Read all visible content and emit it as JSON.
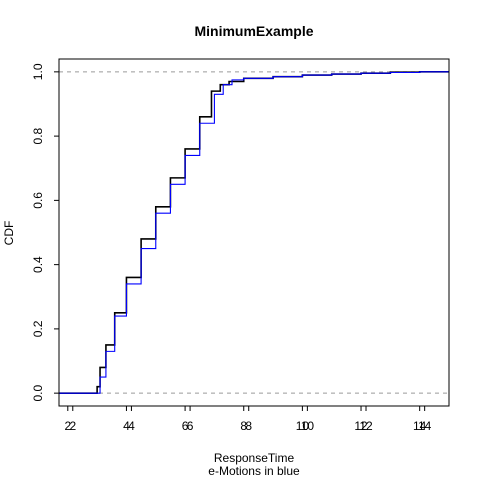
{
  "chart_data": {
    "type": "line",
    "title": "MinimumExample",
    "xlabel": "ResponseTime",
    "xlabel2": "e-Motions in blue",
    "ylabel": "CDF",
    "xlim": [
      1.7,
      15.0
    ],
    "ylim": [
      -0.04,
      1.04
    ],
    "grid": false,
    "x_ticks_a": [
      "2",
      "4",
      "6",
      "8",
      "10",
      "12",
      "14"
    ],
    "x_ticks_b": [
      "2",
      "4",
      "6",
      "8",
      "10",
      "12",
      "14"
    ],
    "x_tick_values": [
      2,
      4,
      6,
      8,
      10,
      12,
      14
    ],
    "x_tick_offset_b": 0.17,
    "y_ticks": [
      "0.0",
      "0.2",
      "0.4",
      "0.6",
      "0.8",
      "1.0"
    ],
    "y_tick_values": [
      0.0,
      0.2,
      0.4,
      0.6,
      0.8,
      1.0
    ],
    "reference_lines": [
      0.0,
      1.0
    ],
    "series": [
      {
        "color": "#000000",
        "x": [
          1.7,
          2.95,
          3.0,
          3.1,
          3.3,
          3.6,
          4.0,
          4.5,
          5.0,
          5.5,
          6.0,
          6.5,
          6.9,
          7.2,
          7.5,
          8.0,
          9.0,
          10.0,
          11.0,
          12.0,
          13.0,
          14.0,
          15.0
        ],
        "values": [
          0.0,
          0.0,
          0.02,
          0.08,
          0.15,
          0.25,
          0.36,
          0.48,
          0.58,
          0.67,
          0.76,
          0.86,
          0.94,
          0.96,
          0.97,
          0.98,
          0.985,
          0.99,
          0.993,
          0.996,
          0.999,
          1.0,
          1.0
        ]
      },
      {
        "color": "#0000ff",
        "x": [
          1.7,
          3.0,
          3.1,
          3.3,
          3.6,
          4.0,
          4.5,
          5.0,
          5.5,
          6.0,
          6.5,
          7.0,
          7.3,
          7.6,
          8.0,
          9.0,
          10.0,
          11.0,
          12.0,
          13.0,
          14.0,
          15.0
        ],
        "values": [
          0.0,
          0.0,
          0.05,
          0.13,
          0.24,
          0.34,
          0.45,
          0.56,
          0.65,
          0.74,
          0.84,
          0.93,
          0.96,
          0.975,
          0.98,
          0.985,
          0.99,
          0.993,
          0.996,
          0.998,
          1.0,
          1.0
        ]
      }
    ]
  }
}
